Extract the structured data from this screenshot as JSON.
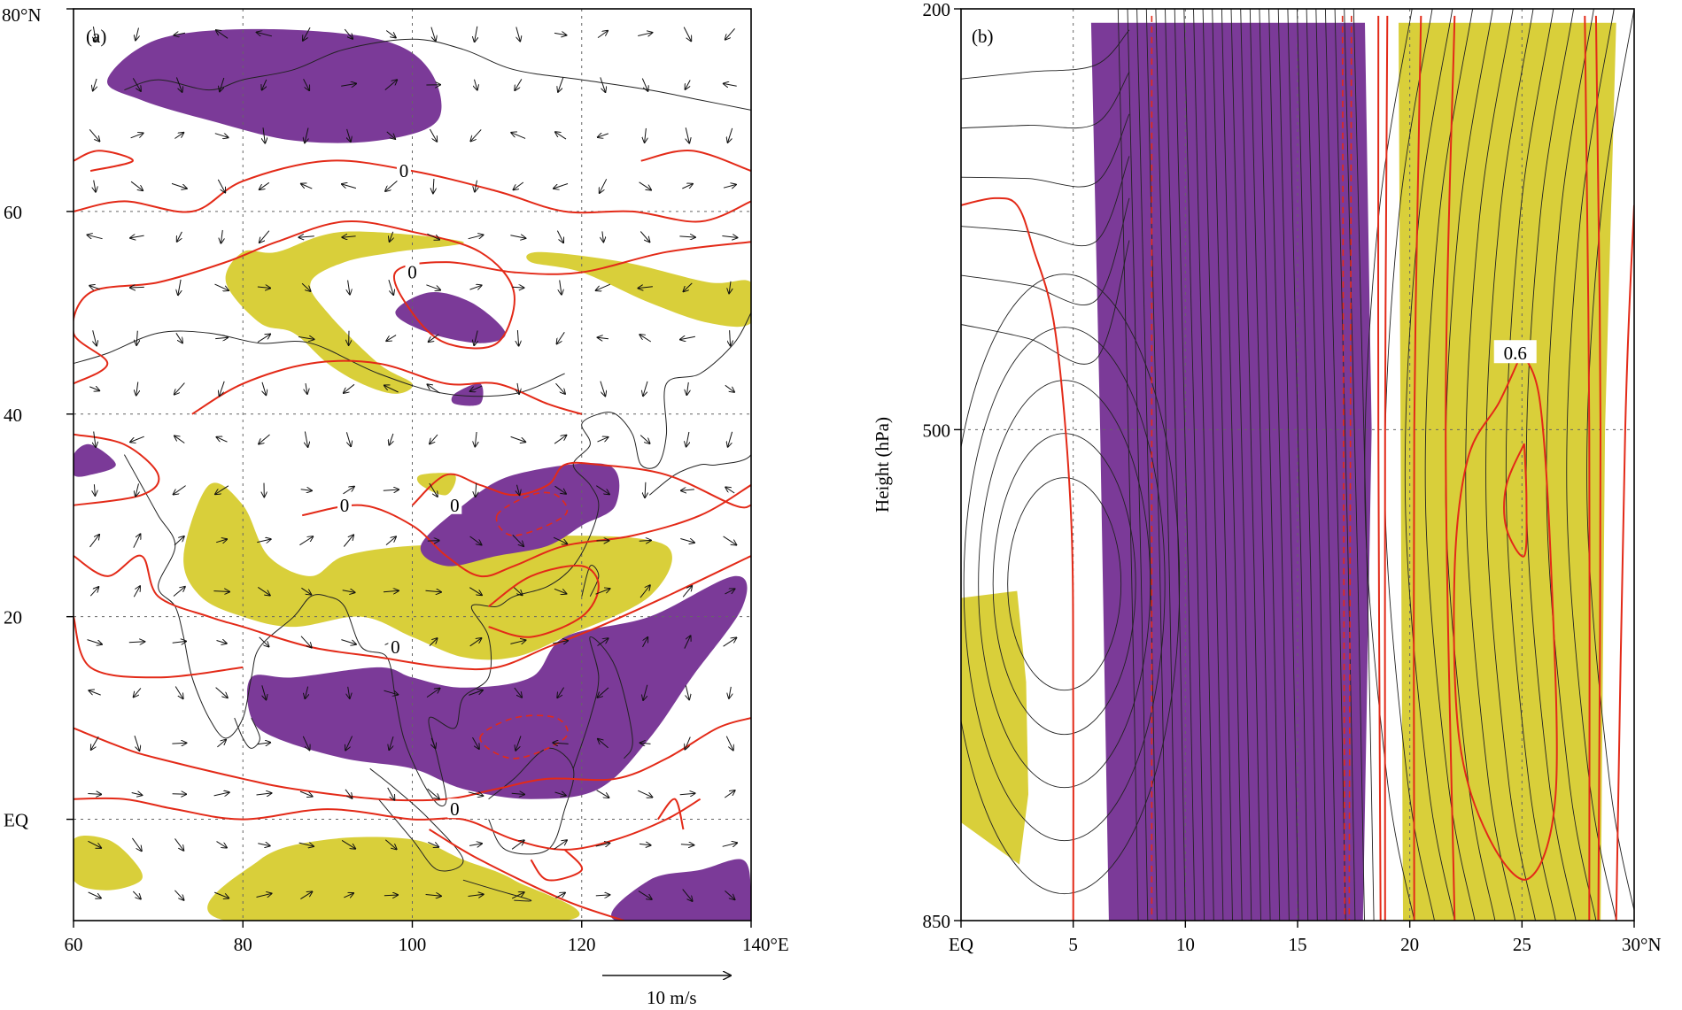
{
  "colors": {
    "positive": "#d9cf3a",
    "negative": "#7b3a98",
    "contour": "#e32a18"
  },
  "chart_data": [
    {
      "type": "heatmap",
      "panel": "(a)",
      "x_ticks": [
        "60",
        "80",
        "100",
        "120",
        "140°E"
      ],
      "x_tick_values": [
        60,
        80,
        100,
        120,
        140
      ],
      "y_ticks": [
        "EQ",
        "20",
        "40",
        "60",
        "80°N"
      ],
      "y_tick_values": [
        0,
        20,
        40,
        60,
        80
      ],
      "xlim": [
        60,
        140
      ],
      "ylim": [
        -10,
        80
      ],
      "contour_labels": [
        {
          "text": "0",
          "lon": 99,
          "lat": 64
        },
        {
          "text": "0",
          "lon": 100,
          "lat": 54
        },
        {
          "text": "0",
          "lon": 92,
          "lat": 31
        },
        {
          "text": "0",
          "lon": 105,
          "lat": 31
        },
        {
          "text": "0",
          "lon": 98,
          "lat": 17
        },
        {
          "text": "0",
          "lon": 105,
          "lat": 1
        }
      ],
      "vector_legend": {
        "label": "10 m/s",
        "magnitude": 10
      },
      "positive_regions": [
        {
          "points": [
            [
              84,
              56
            ],
            [
              92,
              58
            ],
            [
              106,
              57
            ],
            [
              98,
              56
            ],
            [
              92,
              55
            ],
            [
              88,
              53
            ],
            [
              90,
              50
            ],
            [
              96,
              45
            ],
            [
              100,
              43
            ],
            [
              98,
              42
            ],
            [
              94,
              43
            ],
            [
              90,
              45
            ],
            [
              86,
              48
            ],
            [
              82,
              49
            ],
            [
              78,
              53
            ],
            [
              80,
              56
            ]
          ]
        },
        {
          "points": [
            [
              115,
              56
            ],
            [
              125,
              55
            ],
            [
              135,
              53
            ],
            [
              140,
              53
            ],
            [
              140,
              49
            ],
            [
              135,
              49
            ],
            [
              128,
              51
            ],
            [
              120,
              54
            ],
            [
              114,
              55
            ]
          ]
        },
        {
          "points": [
            [
              101,
              34
            ],
            [
              105,
              34
            ],
            [
              104,
              32
            ],
            [
              101,
              33
            ]
          ]
        },
        {
          "points": [
            [
              73,
              26
            ],
            [
              76,
              33
            ],
            [
              80,
              31
            ],
            [
              83,
              26
            ],
            [
              88,
              24
            ],
            [
              92,
              26
            ],
            [
              100,
              27
            ],
            [
              110,
              27
            ],
            [
              118,
              28
            ],
            [
              130,
              27
            ],
            [
              128,
              22
            ],
            [
              118,
              18
            ],
            [
              112,
              16
            ],
            [
              106,
              16
            ],
            [
              100,
              18
            ],
            [
              94,
              20
            ],
            [
              86,
              19
            ],
            [
              80,
              20
            ],
            [
              75,
              22
            ]
          ]
        },
        {
          "points": [
            [
              60,
              -2
            ],
            [
              64,
              -2
            ],
            [
              67,
              -4
            ],
            [
              68,
              -6
            ],
            [
              64,
              -7
            ],
            [
              60,
              -6
            ]
          ]
        },
        {
          "points": [
            [
              78,
              -10
            ],
            [
              82,
              -4
            ],
            [
              90,
              -2
            ],
            [
              100,
              -2
            ],
            [
              106,
              -4
            ],
            [
              112,
              -6
            ],
            [
              118,
              -10
            ]
          ]
        }
      ],
      "negative_regions": [
        {
          "points": [
            [
              64,
              73
            ],
            [
              70,
              77
            ],
            [
              82,
              78
            ],
            [
              96,
              77
            ],
            [
              102,
              74
            ],
            [
              103,
              69
            ],
            [
              96,
              67
            ],
            [
              86,
              67
            ],
            [
              76,
              69
            ],
            [
              68,
              71
            ]
          ]
        },
        {
          "points": [
            [
              98,
              50
            ],
            [
              102,
              52
            ],
            [
              107,
              51
            ],
            [
              111,
              48
            ],
            [
              108,
              47
            ],
            [
              102,
              48
            ]
          ]
        },
        {
          "points": [
            [
              105,
              42
            ],
            [
              108,
              43
            ],
            [
              108,
              41
            ],
            [
              105,
              41
            ]
          ]
        },
        {
          "points": [
            [
              60,
              36
            ],
            [
              62,
              37
            ],
            [
              65,
              35
            ],
            [
              62,
              34
            ],
            [
              60,
              34
            ]
          ]
        },
        {
          "points": [
            [
              101,
              27
            ],
            [
              106,
              31
            ],
            [
              112,
              34
            ],
            [
              123,
              35
            ],
            [
              124,
              31
            ],
            [
              120,
              29
            ],
            [
              116,
              27
            ],
            [
              110,
              26
            ],
            [
              104,
              25
            ]
          ]
        },
        {
          "points": [
            [
              81,
              14
            ],
            [
              86,
              14
            ],
            [
              96,
              15
            ],
            [
              100,
              14
            ],
            [
              106,
              13
            ],
            [
              114,
              14
            ],
            [
              118,
              18
            ],
            [
              128,
              20
            ],
            [
              138,
              24
            ],
            [
              139,
              21
            ],
            [
              133,
              14
            ],
            [
              128,
              8
            ],
            [
              122,
              3
            ],
            [
              114,
              2
            ],
            [
              106,
              3
            ],
            [
              100,
              5
            ],
            [
              92,
              6
            ],
            [
              84,
              8
            ],
            [
              81,
              10
            ]
          ]
        },
        {
          "points": [
            [
              124,
              -10
            ],
            [
              128,
              -6
            ],
            [
              134,
              -5
            ],
            [
              139,
              -4
            ],
            [
              140,
              -7
            ],
            [
              140,
              -10
            ]
          ]
        }
      ]
    },
    {
      "type": "heatmap",
      "panel": "(b)",
      "x_ticks": [
        "EQ",
        "5",
        "10",
        "15",
        "20",
        "25",
        "30°N"
      ],
      "x_tick_values": [
        0,
        5,
        10,
        15,
        20,
        25,
        30
      ],
      "y_ticks": [
        "200",
        "500",
        "850"
      ],
      "y_tick_values": [
        200,
        500,
        850
      ],
      "xlim": [
        0,
        30
      ],
      "ylim": [
        850,
        200
      ],
      "ylabel": "Height (hPa)",
      "contour_labels": [
        {
          "text": "0.6",
          "lat": 24.7,
          "p": 445
        }
      ],
      "positive_regions": [
        {
          "points": [
            [
              0,
              620
            ],
            [
              2.5,
              615
            ],
            [
              2.9,
              680
            ],
            [
              3.0,
              760
            ],
            [
              2.6,
              810
            ],
            [
              0,
              780
            ]
          ]
        },
        {
          "points": [
            [
              19.5,
              210
            ],
            [
              29.2,
              210
            ],
            [
              28.7,
              500
            ],
            [
              28.5,
              860
            ],
            [
              19.7,
              860
            ]
          ]
        }
      ],
      "negative_regions": [
        {
          "points": [
            [
              5.8,
              210
            ],
            [
              18,
              210
            ],
            [
              18.3,
              500
            ],
            [
              17.9,
              860
            ],
            [
              6.6,
              860
            ],
            [
              6.2,
              500
            ]
          ]
        }
      ]
    }
  ]
}
